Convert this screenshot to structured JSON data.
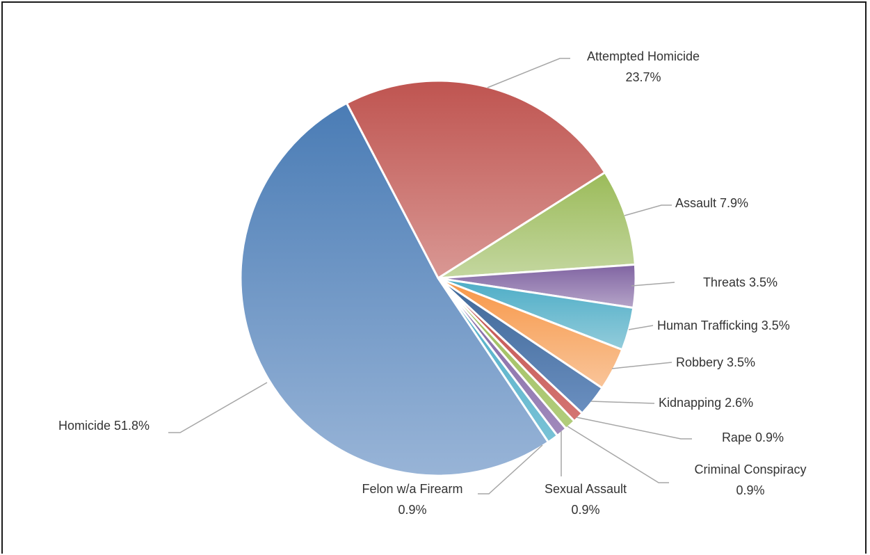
{
  "chart_data": {
    "type": "pie",
    "title": "",
    "start_angle_deg": -27.6,
    "direction": "clockwise",
    "slices": [
      {
        "label": "Attempted Homicide",
        "value": 23.7,
        "value_text": "23.7%",
        "color_top": "#bf5450",
        "color_bottom": "#d99894"
      },
      {
        "label": "Assault",
        "value": 7.9,
        "value_text": "7.9%",
        "color_top": "#9bbb59",
        "color_bottom": "#c4d7a0"
      },
      {
        "label": "Threats",
        "value": 3.5,
        "value_text": "3.5%",
        "color_top": "#8064a2",
        "color_bottom": "#b5a4c8"
      },
      {
        "label": "Human Trafficking",
        "value": 3.5,
        "value_text": "3.5%",
        "color_top": "#4bacc6",
        "color_bottom": "#93ccdb"
      },
      {
        "label": "Robbery",
        "value": 3.5,
        "value_text": "3.5%",
        "color_top": "#f79646",
        "color_bottom": "#f9c59a"
      },
      {
        "label": "Kidnapping",
        "value": 2.6,
        "value_text": "2.6%",
        "color_top": "#3f6797",
        "color_bottom": "#6a8fc0"
      },
      {
        "label": "Rape",
        "value": 0.9,
        "value_text": "0.9%",
        "color_top": "#c0504d",
        "color_bottom": "#d47572"
      },
      {
        "label": "Criminal Conspiracy",
        "value": 0.9,
        "value_text": "0.9%",
        "color_top": "#9bbb59",
        "color_bottom": "#b2cd7c"
      },
      {
        "label": "Sexual Assault",
        "value": 0.9,
        "value_text": "0.9%",
        "color_top": "#8064a2",
        "color_bottom": "#a08abc"
      },
      {
        "label": "Felon w/a Firearm",
        "value": 0.9,
        "value_text": "0.9%",
        "color_top": "#4bacc6",
        "color_bottom": "#79c2d6"
      },
      {
        "label": "Homicide",
        "value": 51.8,
        "value_text": "51.8%",
        "color_top": "#4a7cb5",
        "color_bottom": "#98b4d7"
      }
    ]
  },
  "labels": {
    "attempted_homicide_1": "Attempted Homicide",
    "attempted_homicide_2": "23.7%",
    "assault": "Assault 7.9%",
    "threats": "Threats 3.5%",
    "human_trafficking": "Human Trafficking 3.5%",
    "robbery": "Robbery 3.5%",
    "kidnapping": "Kidnapping 2.6%",
    "rape": "Rape 0.9%",
    "criminal_conspiracy_1": "Criminal Conspiracy",
    "criminal_conspiracy_2": "0.9%",
    "sexual_assault_1": "Sexual Assault",
    "sexual_assault_2": "0.9%",
    "felon_1": "Felon w/a Firearm",
    "felon_2": "0.9%",
    "homicide": "Homicide 51.8%"
  }
}
